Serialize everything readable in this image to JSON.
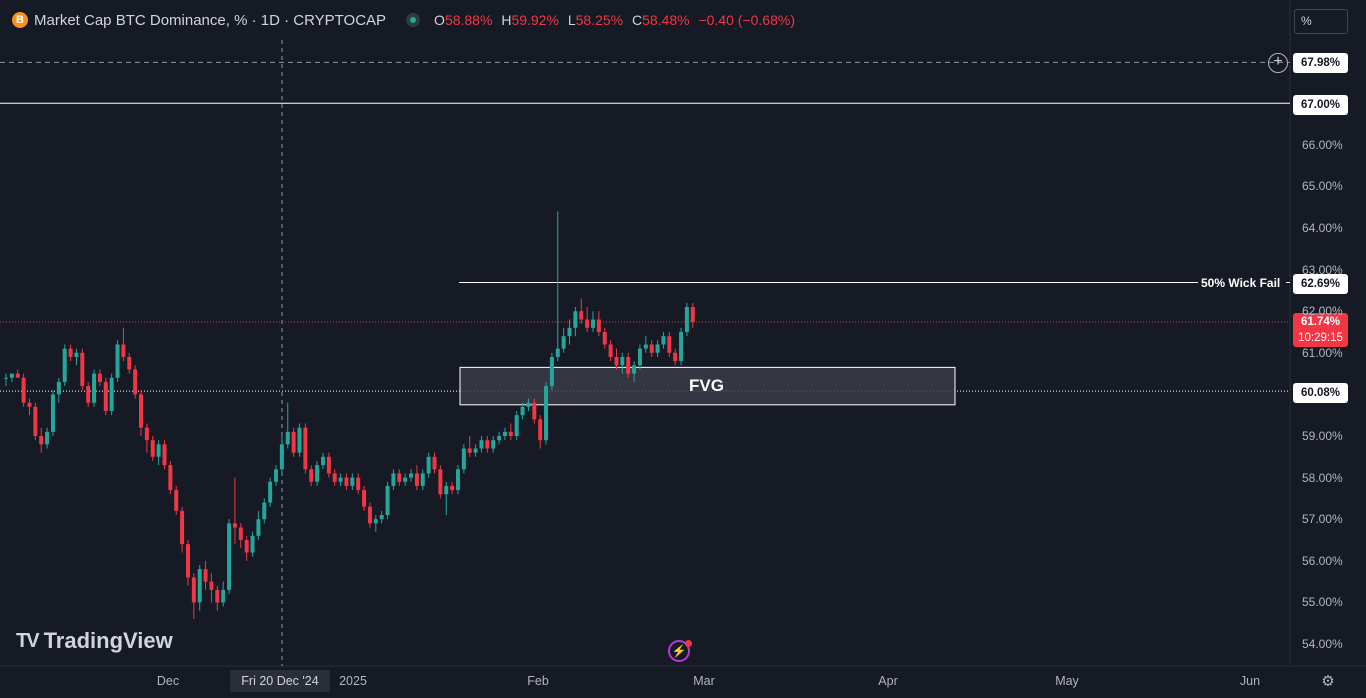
{
  "header": {
    "symbol_icon": "B",
    "title": "Market Cap BTC Dominance, % · 1D · CRYPTOCAP",
    "ohlc": {
      "o_key": "O",
      "o_val": "58.88%",
      "h_key": "H",
      "h_val": "59.92%",
      "l_key": "L",
      "l_val": "58.25%",
      "c_key": "C",
      "c_val": "58.48%",
      "change": "−0.40 (−0.68%)"
    }
  },
  "scale_mode": "%",
  "price_axis": {
    "ticks": [
      "66.00%",
      "65.00%",
      "64.00%",
      "63.00%",
      "62.00%",
      "61.00%",
      "59.00%",
      "58.00%",
      "57.00%",
      "56.00%",
      "55.00%",
      "54.00%"
    ],
    "labels": {
      "crosshair_price": "67.98%",
      "level_67": "67.00%",
      "wick_level": "62.69%",
      "last_price": "61.74%",
      "countdown": "10:29:15",
      "fvg_level": "60.08%"
    }
  },
  "annotations": {
    "wick_fail": "50% Wick Fail",
    "fvg": "FVG"
  },
  "time_axis": {
    "ticks": [
      "Dec",
      "2025",
      "Feb",
      "Mar",
      "Apr",
      "May",
      "Jun"
    ],
    "crosshair_date": "Fri 20 Dec '24"
  },
  "branding": {
    "logo_mark": "TV",
    "logo_text": "TradingView"
  },
  "icons": {
    "plus": "plus-circle-icon",
    "flash": "flash-icon",
    "settings": "gear-icon"
  },
  "colors": {
    "background": "#161a25",
    "up": "#26a69a",
    "down": "#f23645",
    "fvg_fill": "#3a3d47"
  },
  "chart_data": {
    "type": "candlestick",
    "title": "Market Cap BTC Dominance, %",
    "y_unit": "%",
    "ylim": [
      53.8,
      68.3
    ],
    "candles": [
      {
        "o": 60.4,
        "h": 60.5,
        "l": 60.2,
        "c": 60.4
      },
      {
        "o": 60.4,
        "h": 60.5,
        "l": 60.3,
        "c": 60.5
      },
      {
        "o": 60.5,
        "h": 60.6,
        "l": 60.4,
        "c": 60.4
      },
      {
        "o": 60.4,
        "h": 60.5,
        "l": 59.7,
        "c": 59.8
      },
      {
        "o": 59.8,
        "h": 59.9,
        "l": 59.5,
        "c": 59.7
      },
      {
        "o": 59.7,
        "h": 59.8,
        "l": 58.9,
        "c": 59.0
      },
      {
        "o": 59.0,
        "h": 59.2,
        "l": 58.6,
        "c": 58.8
      },
      {
        "o": 58.8,
        "h": 59.2,
        "l": 58.7,
        "c": 59.1
      },
      {
        "o": 59.1,
        "h": 60.1,
        "l": 59.0,
        "c": 60.0
      },
      {
        "o": 60.0,
        "h": 60.4,
        "l": 59.8,
        "c": 60.3
      },
      {
        "o": 60.3,
        "h": 61.2,
        "l": 60.2,
        "c": 61.1
      },
      {
        "o": 61.1,
        "h": 61.2,
        "l": 60.8,
        "c": 60.9
      },
      {
        "o": 60.9,
        "h": 61.1,
        "l": 60.7,
        "c": 61.0
      },
      {
        "o": 61.0,
        "h": 61.1,
        "l": 60.1,
        "c": 60.2
      },
      {
        "o": 60.2,
        "h": 60.3,
        "l": 59.7,
        "c": 59.8
      },
      {
        "o": 59.8,
        "h": 60.6,
        "l": 59.7,
        "c": 60.5
      },
      {
        "o": 60.5,
        "h": 60.6,
        "l": 60.2,
        "c": 60.3
      },
      {
        "o": 60.3,
        "h": 60.4,
        "l": 59.5,
        "c": 59.6
      },
      {
        "o": 59.6,
        "h": 60.5,
        "l": 59.5,
        "c": 60.4
      },
      {
        "o": 60.4,
        "h": 61.3,
        "l": 60.3,
        "c": 61.2
      },
      {
        "o": 61.2,
        "h": 61.6,
        "l": 60.8,
        "c": 60.9
      },
      {
        "o": 60.9,
        "h": 61.0,
        "l": 60.5,
        "c": 60.6
      },
      {
        "o": 60.6,
        "h": 60.7,
        "l": 59.9,
        "c": 60.0
      },
      {
        "o": 60.0,
        "h": 60.1,
        "l": 59.0,
        "c": 59.2
      },
      {
        "o": 59.2,
        "h": 59.3,
        "l": 58.6,
        "c": 58.9
      },
      {
        "o": 58.9,
        "h": 59.0,
        "l": 58.4,
        "c": 58.5
      },
      {
        "o": 58.5,
        "h": 58.9,
        "l": 58.3,
        "c": 58.8
      },
      {
        "o": 58.8,
        "h": 58.9,
        "l": 58.2,
        "c": 58.3
      },
      {
        "o": 58.3,
        "h": 58.4,
        "l": 57.6,
        "c": 57.7
      },
      {
        "o": 57.7,
        "h": 57.8,
        "l": 57.1,
        "c": 57.2
      },
      {
        "o": 57.2,
        "h": 57.3,
        "l": 56.2,
        "c": 56.4
      },
      {
        "o": 56.4,
        "h": 56.5,
        "l": 55.4,
        "c": 55.6
      },
      {
        "o": 55.6,
        "h": 55.7,
        "l": 54.6,
        "c": 55.0
      },
      {
        "o": 55.0,
        "h": 55.9,
        "l": 54.8,
        "c": 55.8
      },
      {
        "o": 55.8,
        "h": 56.0,
        "l": 55.3,
        "c": 55.5
      },
      {
        "o": 55.5,
        "h": 55.7,
        "l": 55.0,
        "c": 55.3
      },
      {
        "o": 55.3,
        "h": 55.4,
        "l": 54.8,
        "c": 55.0
      },
      {
        "o": 55.0,
        "h": 55.5,
        "l": 54.9,
        "c": 55.3
      },
      {
        "o": 55.3,
        "h": 57.0,
        "l": 55.2,
        "c": 56.9
      },
      {
        "o": 56.9,
        "h": 58.0,
        "l": 56.4,
        "c": 56.8
      },
      {
        "o": 56.8,
        "h": 56.9,
        "l": 56.3,
        "c": 56.5
      },
      {
        "o": 56.5,
        "h": 56.6,
        "l": 56.0,
        "c": 56.2
      },
      {
        "o": 56.2,
        "h": 56.7,
        "l": 56.1,
        "c": 56.6
      },
      {
        "o": 56.6,
        "h": 57.2,
        "l": 56.5,
        "c": 57.0
      },
      {
        "o": 57.0,
        "h": 57.5,
        "l": 56.9,
        "c": 57.4
      },
      {
        "o": 57.4,
        "h": 58.0,
        "l": 57.3,
        "c": 57.9
      },
      {
        "o": 57.9,
        "h": 58.3,
        "l": 57.8,
        "c": 58.2
      },
      {
        "o": 58.2,
        "h": 59.0,
        "l": 58.1,
        "c": 58.8
      },
      {
        "o": 58.8,
        "h": 59.8,
        "l": 58.7,
        "c": 59.1
      },
      {
        "o": 59.1,
        "h": 59.2,
        "l": 58.5,
        "c": 58.6
      },
      {
        "o": 58.6,
        "h": 59.3,
        "l": 58.5,
        "c": 59.2
      },
      {
        "o": 59.2,
        "h": 59.3,
        "l": 58.1,
        "c": 58.2
      },
      {
        "o": 58.2,
        "h": 58.3,
        "l": 57.8,
        "c": 57.9
      },
      {
        "o": 57.9,
        "h": 58.4,
        "l": 57.8,
        "c": 58.3
      },
      {
        "o": 58.3,
        "h": 58.6,
        "l": 58.2,
        "c": 58.5
      },
      {
        "o": 58.5,
        "h": 58.6,
        "l": 58.0,
        "c": 58.1
      },
      {
        "o": 58.1,
        "h": 58.2,
        "l": 57.8,
        "c": 57.9
      },
      {
        "o": 57.9,
        "h": 58.1,
        "l": 57.8,
        "c": 58.0
      },
      {
        "o": 58.0,
        "h": 58.1,
        "l": 57.7,
        "c": 57.8
      },
      {
        "o": 57.8,
        "h": 58.1,
        "l": 57.7,
        "c": 58.0
      },
      {
        "o": 58.0,
        "h": 58.1,
        "l": 57.6,
        "c": 57.7
      },
      {
        "o": 57.7,
        "h": 57.8,
        "l": 57.2,
        "c": 57.3
      },
      {
        "o": 57.3,
        "h": 57.4,
        "l": 56.8,
        "c": 56.9
      },
      {
        "o": 56.9,
        "h": 57.1,
        "l": 56.7,
        "c": 57.0
      },
      {
        "o": 57.0,
        "h": 57.2,
        "l": 56.9,
        "c": 57.1
      },
      {
        "o": 57.1,
        "h": 57.9,
        "l": 57.0,
        "c": 57.8
      },
      {
        "o": 57.8,
        "h": 58.2,
        "l": 57.7,
        "c": 58.1
      },
      {
        "o": 58.1,
        "h": 58.2,
        "l": 57.8,
        "c": 57.9
      },
      {
        "o": 57.9,
        "h": 58.1,
        "l": 57.8,
        "c": 58.0
      },
      {
        "o": 58.0,
        "h": 58.2,
        "l": 57.9,
        "c": 58.1
      },
      {
        "o": 58.1,
        "h": 58.3,
        "l": 57.7,
        "c": 57.8
      },
      {
        "o": 57.8,
        "h": 58.2,
        "l": 57.7,
        "c": 58.1
      },
      {
        "o": 58.1,
        "h": 58.6,
        "l": 58.0,
        "c": 58.5
      },
      {
        "o": 58.5,
        "h": 58.6,
        "l": 58.1,
        "c": 58.2
      },
      {
        "o": 58.2,
        "h": 58.3,
        "l": 57.5,
        "c": 57.6
      },
      {
        "o": 57.6,
        "h": 57.9,
        "l": 57.1,
        "c": 57.8
      },
      {
        "o": 57.8,
        "h": 57.9,
        "l": 57.6,
        "c": 57.7
      },
      {
        "o": 57.7,
        "h": 58.3,
        "l": 57.6,
        "c": 58.2
      },
      {
        "o": 58.2,
        "h": 58.8,
        "l": 58.1,
        "c": 58.7
      },
      {
        "o": 58.7,
        "h": 59.0,
        "l": 58.5,
        "c": 58.6
      },
      {
        "o": 58.6,
        "h": 58.8,
        "l": 58.5,
        "c": 58.7
      },
      {
        "o": 58.7,
        "h": 59.0,
        "l": 58.6,
        "c": 58.9
      },
      {
        "o": 58.9,
        "h": 59.0,
        "l": 58.6,
        "c": 58.7
      },
      {
        "o": 58.7,
        "h": 59.0,
        "l": 58.6,
        "c": 58.9
      },
      {
        "o": 58.9,
        "h": 59.1,
        "l": 58.8,
        "c": 59.0
      },
      {
        "o": 59.0,
        "h": 59.2,
        "l": 58.9,
        "c": 59.1
      },
      {
        "o": 59.1,
        "h": 59.3,
        "l": 58.9,
        "c": 59.0
      },
      {
        "o": 59.0,
        "h": 59.6,
        "l": 58.9,
        "c": 59.5
      },
      {
        "o": 59.5,
        "h": 59.8,
        "l": 59.4,
        "c": 59.7
      },
      {
        "o": 59.7,
        "h": 59.9,
        "l": 59.6,
        "c": 59.8
      },
      {
        "o": 59.8,
        "h": 59.9,
        "l": 59.3,
        "c": 59.4
      },
      {
        "o": 59.4,
        "h": 59.5,
        "l": 58.7,
        "c": 58.9
      },
      {
        "o": 58.9,
        "h": 60.3,
        "l": 58.8,
        "c": 60.2
      },
      {
        "o": 60.2,
        "h": 61.0,
        "l": 60.1,
        "c": 60.9
      },
      {
        "o": 60.9,
        "h": 64.4,
        "l": 60.8,
        "c": 61.1
      },
      {
        "o": 61.1,
        "h": 61.6,
        "l": 61.0,
        "c": 61.4
      },
      {
        "o": 61.4,
        "h": 61.8,
        "l": 61.2,
        "c": 61.6
      },
      {
        "o": 61.6,
        "h": 62.1,
        "l": 61.4,
        "c": 62.0
      },
      {
        "o": 62.0,
        "h": 62.3,
        "l": 61.7,
        "c": 61.8
      },
      {
        "o": 61.8,
        "h": 62.1,
        "l": 61.5,
        "c": 61.6
      },
      {
        "o": 61.6,
        "h": 62.0,
        "l": 61.5,
        "c": 61.8
      },
      {
        "o": 61.8,
        "h": 62.0,
        "l": 61.4,
        "c": 61.5
      },
      {
        "o": 61.5,
        "h": 61.6,
        "l": 61.1,
        "c": 61.2
      },
      {
        "o": 61.2,
        "h": 61.3,
        "l": 60.8,
        "c": 60.9
      },
      {
        "o": 60.9,
        "h": 61.1,
        "l": 60.6,
        "c": 60.7
      },
      {
        "o": 60.7,
        "h": 61.0,
        "l": 60.5,
        "c": 60.9
      },
      {
        "o": 60.9,
        "h": 61.0,
        "l": 60.4,
        "c": 60.5
      },
      {
        "o": 60.5,
        "h": 60.8,
        "l": 60.3,
        "c": 60.7
      },
      {
        "o": 60.7,
        "h": 61.2,
        "l": 60.6,
        "c": 61.1
      },
      {
        "o": 61.1,
        "h": 61.4,
        "l": 61.0,
        "c": 61.2
      },
      {
        "o": 61.2,
        "h": 61.3,
        "l": 60.9,
        "c": 61.0
      },
      {
        "o": 61.0,
        "h": 61.3,
        "l": 60.9,
        "c": 61.2
      },
      {
        "o": 61.2,
        "h": 61.5,
        "l": 61.1,
        "c": 61.4
      },
      {
        "o": 61.4,
        "h": 61.5,
        "l": 60.9,
        "c": 61.0
      },
      {
        "o": 61.0,
        "h": 61.1,
        "l": 60.7,
        "c": 60.8
      },
      {
        "o": 60.8,
        "h": 61.6,
        "l": 60.7,
        "c": 61.5
      },
      {
        "o": 61.5,
        "h": 62.2,
        "l": 61.4,
        "c": 62.1
      },
      {
        "o": 62.1,
        "h": 62.2,
        "l": 61.6,
        "c": 61.74
      }
    ],
    "levels": [
      {
        "price": 67.98,
        "label": "67.98%",
        "style": "dashed"
      },
      {
        "price": 67.0,
        "label": "67.00%",
        "style": "solid"
      },
      {
        "price": 62.69,
        "label": "62.69%",
        "style": "solid",
        "note": "50% Wick Fail"
      },
      {
        "price": 61.74,
        "label": "61.74%",
        "style": "dotted"
      },
      {
        "price": 60.08,
        "label": "60.08%",
        "style": "dotted"
      }
    ],
    "zones": [
      {
        "name": "FVG",
        "from": 59.75,
        "to": 60.65
      }
    ]
  }
}
